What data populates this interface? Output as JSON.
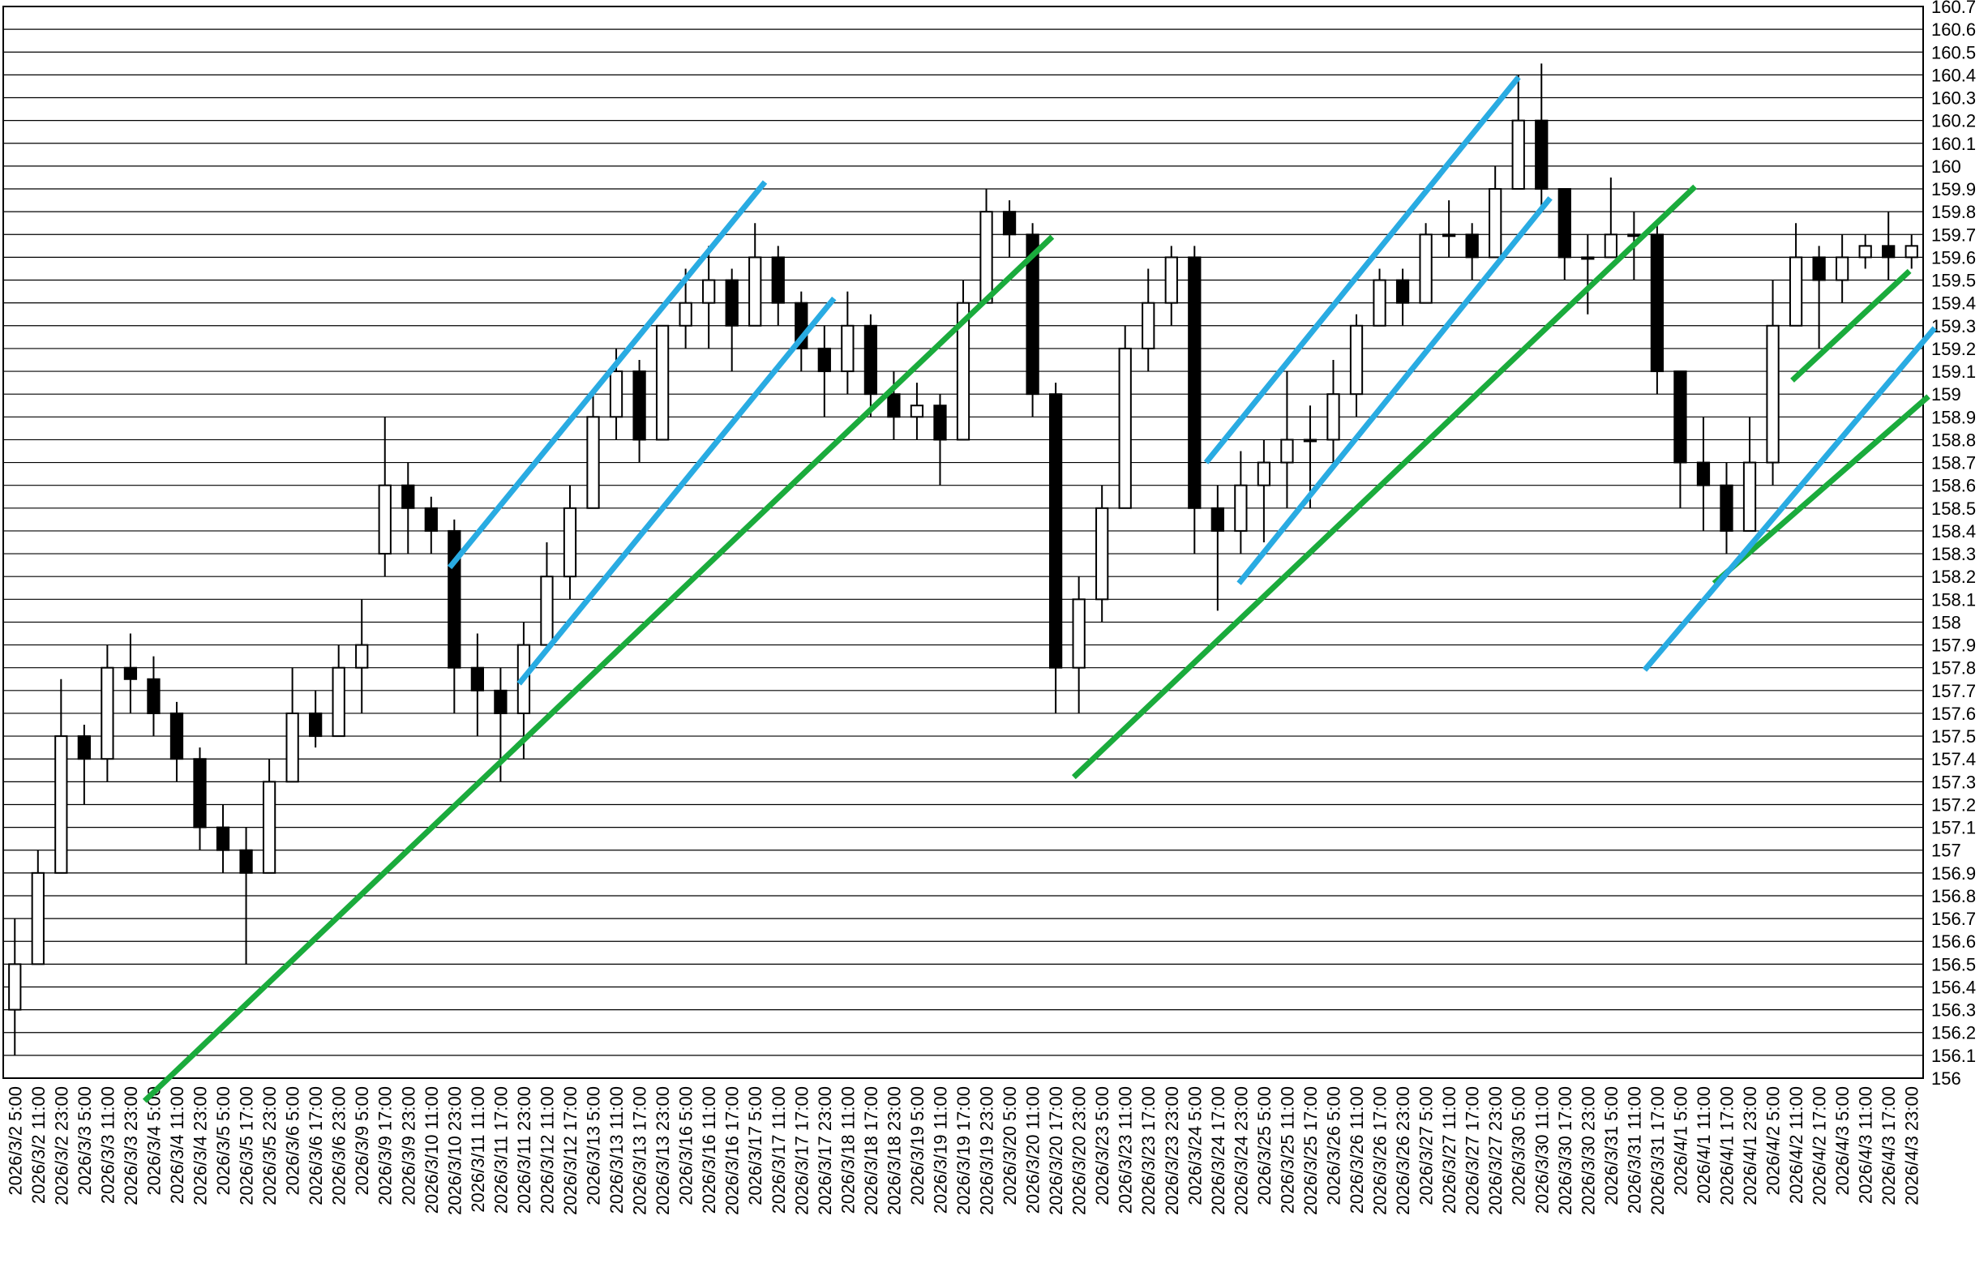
{
  "chart_data": {
    "type": "candlestick",
    "categories": [
      "2026/3/2 5:00",
      "2026/3/2 11:00",
      "2026/3/2 23:00",
      "2026/3/3 5:00",
      "2026/3/3 11:00",
      "2026/3/3 23:00",
      "2026/3/4 5:00",
      "2026/3/4 11:00",
      "2026/3/4 23:00",
      "2026/3/5 5:00",
      "2026/3/5 17:00",
      "2026/3/5 23:00",
      "2026/3/6 5:00",
      "2026/3/6 17:00",
      "2026/3/6 23:00",
      "2026/3/9 5:00",
      "2026/3/9 17:00",
      "2026/3/9 23:00",
      "2026/3/10 11:00",
      "2026/3/10 23:00",
      "2026/3/11 11:00",
      "2026/3/11 17:00",
      "2026/3/11 23:00",
      "2026/3/12 11:00",
      "2026/3/12 17:00",
      "2026/3/13 5:00",
      "2026/3/13 11:00",
      "2026/3/13 17:00",
      "2026/3/13 23:00",
      "2026/3/16 5:00",
      "2026/3/16 11:00",
      "2026/3/16 17:00",
      "2026/3/17 5:00",
      "2026/3/17 11:00",
      "2026/3/17 17:00",
      "2026/3/17 23:00",
      "2026/3/18 11:00",
      "2026/3/18 17:00",
      "2026/3/18 23:00",
      "2026/3/19 5:00",
      "2026/3/19 11:00",
      "2026/3/19 17:00",
      "2026/3/19 23:00",
      "2026/3/20 5:00",
      "2026/3/20 11:00",
      "2026/3/20 17:00",
      "2026/3/20 23:00",
      "2026/3/23 5:00",
      "2026/3/23 11:00",
      "2026/3/23 17:00",
      "2026/3/23 23:00",
      "2026/3/24 5:00",
      "2026/3/24 17:00",
      "2026/3/24 23:00",
      "2026/3/25 5:00",
      "2026/3/25 11:00",
      "2026/3/25 17:00",
      "2026/3/26 5:00",
      "2026/3/26 11:00",
      "2026/3/26 17:00",
      "2026/3/26 23:00",
      "2026/3/27 5:00",
      "2026/3/27 11:00",
      "2026/3/27 17:00",
      "2026/3/27 23:00",
      "2026/3/30 5:00",
      "2026/3/30 11:00",
      "2026/3/30 17:00",
      "2026/3/30 23:00",
      "2026/3/31 5:00",
      "2026/3/31 11:00",
      "2026/3/31 17:00",
      "2026/4/1 5:00",
      "2026/4/1 11:00",
      "2026/4/1 17:00",
      "2026/4/1 23:00",
      "2026/4/2 5:00",
      "2026/4/2 11:00",
      "2026/4/2 17:00",
      "2026/4/3 5:00",
      "2026/4/3 11:00",
      "2026/4/3 17:00",
      "2026/4/3 23:00"
    ],
    "open": [
      156.3,
      156.5,
      156.9,
      157.5,
      157.4,
      157.8,
      157.75,
      157.6,
      157.4,
      157.1,
      157.0,
      156.9,
      157.3,
      157.6,
      157.5,
      157.8,
      158.3,
      158.6,
      158.5,
      158.4,
      157.8,
      157.7,
      157.6,
      157.9,
      158.2,
      158.5,
      158.9,
      159.1,
      158.8,
      159.3,
      159.4,
      159.5,
      159.3,
      159.6,
      159.4,
      159.2,
      159.1,
      159.3,
      159.0,
      158.9,
      158.95,
      158.8,
      159.4,
      159.8,
      159.7,
      159.0,
      157.8,
      158.1,
      158.5,
      159.2,
      159.4,
      159.6,
      158.5,
      158.4,
      158.6,
      158.7,
      158.8,
      158.8,
      159.0,
      159.3,
      159.5,
      159.4,
      159.7,
      159.7,
      159.6,
      159.9,
      160.2,
      159.9,
      159.6,
      159.6,
      159.7,
      159.7,
      159.1,
      158.7,
      158.6,
      158.4,
      158.7,
      159.3,
      159.6,
      159.5,
      159.6,
      159.65,
      159.6
    ],
    "high": [
      156.7,
      157.0,
      157.75,
      157.55,
      157.9,
      157.95,
      157.85,
      157.65,
      157.45,
      157.2,
      157.1,
      157.4,
      157.8,
      157.7,
      157.9,
      158.1,
      158.9,
      158.7,
      158.55,
      158.45,
      157.95,
      157.8,
      158.0,
      158.35,
      158.6,
      159.0,
      159.2,
      159.15,
      159.3,
      159.55,
      159.65,
      159.55,
      159.75,
      159.65,
      159.45,
      159.3,
      159.45,
      159.35,
      159.1,
      159.05,
      159.0,
      159.5,
      159.9,
      159.85,
      159.75,
      159.05,
      158.2,
      158.6,
      159.3,
      159.55,
      159.65,
      159.65,
      158.6,
      158.75,
      158.8,
      159.1,
      158.95,
      159.15,
      159.35,
      159.55,
      159.55,
      159.75,
      159.85,
      159.75,
      160.0,
      160.4,
      160.45,
      159.9,
      159.7,
      159.95,
      159.8,
      159.75,
      159.1,
      158.9,
      158.7,
      158.9,
      159.5,
      159.75,
      159.65,
      159.7,
      159.7,
      159.8,
      159.7
    ],
    "low": [
      156.1,
      156.5,
      156.9,
      157.2,
      157.3,
      157.6,
      157.5,
      157.3,
      157.0,
      156.9,
      156.5,
      156.9,
      157.3,
      157.45,
      157.5,
      157.6,
      158.2,
      158.3,
      158.3,
      157.6,
      157.5,
      157.3,
      157.4,
      157.9,
      158.1,
      158.5,
      158.8,
      158.7,
      158.8,
      159.2,
      159.2,
      159.1,
      159.3,
      159.3,
      159.1,
      158.9,
      159.0,
      158.9,
      158.8,
      158.8,
      158.6,
      158.8,
      159.4,
      159.6,
      158.9,
      157.6,
      157.6,
      158.0,
      158.5,
      159.1,
      159.3,
      158.3,
      158.05,
      158.3,
      158.35,
      158.5,
      158.5,
      158.7,
      158.9,
      159.3,
      159.3,
      159.4,
      159.6,
      159.5,
      159.6,
      159.9,
      159.8,
      159.5,
      159.35,
      159.6,
      159.5,
      159.0,
      158.5,
      158.4,
      158.3,
      158.4,
      158.6,
      159.3,
      159.2,
      159.4,
      159.55,
      159.5,
      159.55
    ],
    "close": [
      156.5,
      156.9,
      157.5,
      157.4,
      157.8,
      157.75,
      157.6,
      157.4,
      157.1,
      157.0,
      156.9,
      157.3,
      157.6,
      157.5,
      157.8,
      157.9,
      158.6,
      158.5,
      158.4,
      157.8,
      157.7,
      157.6,
      157.9,
      158.2,
      158.5,
      158.9,
      159.1,
      158.8,
      159.3,
      159.4,
      159.5,
      159.3,
      159.6,
      159.4,
      159.2,
      159.1,
      159.3,
      159.0,
      158.9,
      158.95,
      158.8,
      159.4,
      159.8,
      159.7,
      159.0,
      157.8,
      158.1,
      158.5,
      159.2,
      159.4,
      159.6,
      158.5,
      158.4,
      158.6,
      158.7,
      158.8,
      158.8,
      159.0,
      159.3,
      159.5,
      159.4,
      159.7,
      159.7,
      159.6,
      159.9,
      160.2,
      159.9,
      159.6,
      159.6,
      159.7,
      159.7,
      159.1,
      158.7,
      158.6,
      158.4,
      158.7,
      159.3,
      159.6,
      159.5,
      159.6,
      159.65,
      159.6,
      159.65
    ],
    "up_color": "#ffffff",
    "down_color": "#000000",
    "wick_color": "#000000",
    "ylim": [
      156,
      160.7
    ],
    "yticks": [
      156,
      156.1,
      156.2,
      156.3,
      156.4,
      156.5,
      156.6,
      156.7,
      156.8,
      156.9,
      157,
      157.1,
      157.2,
      157.3,
      157.4,
      157.5,
      157.6,
      157.7,
      157.8,
      157.9,
      158,
      158.1,
      158.2,
      158.3,
      158.4,
      158.5,
      158.6,
      158.7,
      158.8,
      158.9,
      159,
      159.1,
      159.2,
      159.3,
      159.4,
      159.5,
      159.6,
      159.7,
      159.8,
      159.9,
      160,
      160.1,
      160.2,
      160.3,
      160.4,
      160.5,
      160.6,
      160.7
    ],
    "grid": true,
    "trend_lines": [
      {
        "color": "#1aab3c",
        "points": [
          [
            5.61,
            155.9
          ],
          [
            44.85,
            159.69
          ]
        ]
      },
      {
        "color": "#1aab3c",
        "points": [
          [
            45.78,
            157.32
          ],
          [
            72.64,
            159.91
          ]
        ]
      },
      {
        "color": "#1aab3c",
        "points": [
          [
            76.84,
            159.06
          ],
          [
            81.91,
            159.54
          ]
        ]
      },
      {
        "color": "#1aab3c",
        "points": [
          [
            73.46,
            158.17
          ],
          [
            82.73,
            158.99
          ]
        ]
      },
      {
        "color": "#29abe2",
        "points": [
          [
            18.8,
            158.24
          ],
          [
            32.43,
            159.93
          ]
        ]
      },
      {
        "color": "#29abe2",
        "points": [
          [
            21.8,
            157.73
          ],
          [
            35.42,
            159.42
          ]
        ]
      },
      {
        "color": "#29abe2",
        "points": [
          [
            51.5,
            158.7
          ],
          [
            65.01,
            160.39
          ]
        ]
      },
      {
        "color": "#29abe2",
        "points": [
          [
            52.92,
            158.17
          ],
          [
            66.38,
            159.86
          ]
        ]
      },
      {
        "color": "#29abe2",
        "points": [
          [
            70.46,
            157.79
          ],
          [
            83.0,
            159.29
          ]
        ]
      }
    ]
  }
}
